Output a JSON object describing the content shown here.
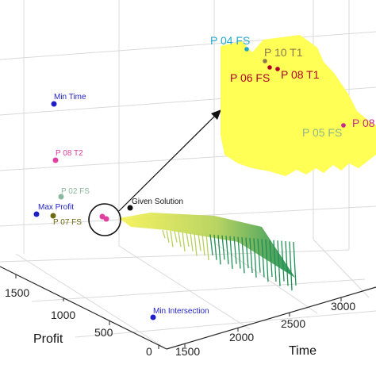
{
  "chart_data": {
    "type": "scatter",
    "projection": "3d",
    "xlabel": "Time",
    "ylabel": "Profit",
    "zlabel": "",
    "x_ticks": [
      "1500",
      "2000",
      "2500",
      "3000"
    ],
    "y_ticks": [
      "0",
      "500",
      "1000",
      "1500"
    ],
    "grid": true,
    "points": [
      {
        "label": "Min Time",
        "color": "#1f1fc8"
      },
      {
        "label": "P 08 T2",
        "color": "#e0409f"
      },
      {
        "label": "P 02 FS",
        "color": "#88b8a0"
      },
      {
        "label": "Max Profit",
        "color": "#1f1fc8"
      },
      {
        "label": "P 07 FS",
        "color": "#6e6a10"
      },
      {
        "label": "Given Solution",
        "color": "#111111"
      },
      {
        "label": "Min Intersection",
        "color": "#1f1fc8"
      }
    ],
    "surface_colormap": [
      "#f7f35a",
      "#b6d25b",
      "#1f8f55"
    ],
    "zoom_inset": {
      "fill": "#ffff55",
      "points": [
        {
          "label": "P 04 FS",
          "color": "#20a8c8"
        },
        {
          "label": "P 10 T1",
          "color": "#8a7a50"
        },
        {
          "label": "P 06 FS",
          "color": "#b0002a"
        },
        {
          "label": "P 08 T1",
          "color": "#b0002a"
        },
        {
          "label": "P 05 FS",
          "color": "#8fb58a"
        },
        {
          "label": "P 08",
          "color": "#c8288c"
        }
      ]
    }
  }
}
